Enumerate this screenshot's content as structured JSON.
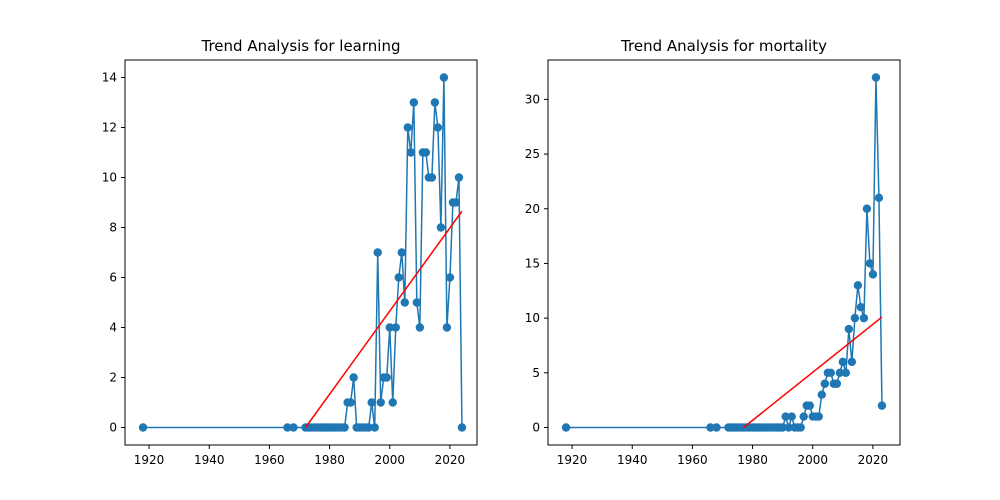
{
  "chart_data": [
    {
      "type": "line",
      "title": "Trend Analysis for learning",
      "xlabel": "",
      "ylabel": "",
      "xlim": [
        1912,
        2029
      ],
      "ylim": [
        -0.7,
        14.7
      ],
      "xticks": [
        1920,
        1940,
        1960,
        1980,
        2000,
        2020
      ],
      "yticks": [
        0,
        2,
        4,
        6,
        8,
        10,
        12,
        14
      ],
      "grid": false,
      "series": [
        {
          "color": "#1f77b4",
          "marker": "circle",
          "points": [
            [
              1918,
              0
            ],
            [
              1966,
              0
            ],
            [
              1968,
              0
            ],
            [
              1972,
              0
            ],
            [
              1973,
              0
            ],
            [
              1974,
              0
            ],
            [
              1975,
              0
            ],
            [
              1976,
              0
            ],
            [
              1977,
              0
            ],
            [
              1978,
              0
            ],
            [
              1979,
              0
            ],
            [
              1980,
              0
            ],
            [
              1981,
              0
            ],
            [
              1982,
              0
            ],
            [
              1983,
              0
            ],
            [
              1984,
              0
            ],
            [
              1985,
              0
            ],
            [
              1986,
              1
            ],
            [
              1987,
              1
            ],
            [
              1988,
              2
            ],
            [
              1989,
              0
            ],
            [
              1990,
              0
            ],
            [
              1991,
              0
            ],
            [
              1992,
              0
            ],
            [
              1993,
              0
            ],
            [
              1994,
              1
            ],
            [
              1995,
              0
            ],
            [
              1996,
              7
            ],
            [
              1997,
              1
            ],
            [
              1998,
              2
            ],
            [
              1999,
              2
            ],
            [
              2000,
              4
            ],
            [
              2001,
              1
            ],
            [
              2002,
              4
            ],
            [
              2003,
              6
            ],
            [
              2004,
              7
            ],
            [
              2005,
              5
            ],
            [
              2006,
              12
            ],
            [
              2007,
              11
            ],
            [
              2008,
              13
            ],
            [
              2009,
              5
            ],
            [
              2010,
              4
            ],
            [
              2011,
              11
            ],
            [
              2012,
              11
            ],
            [
              2013,
              10
            ],
            [
              2014,
              10
            ],
            [
              2015,
              13
            ],
            [
              2016,
              12
            ],
            [
              2017,
              8
            ],
            [
              2018,
              14
            ],
            [
              2019,
              4
            ],
            [
              2020,
              6
            ],
            [
              2021,
              9
            ],
            [
              2022,
              9
            ],
            [
              2023,
              10
            ],
            [
              2024,
              0
            ]
          ]
        },
        {
          "color": "#ff0000",
          "marker": "none",
          "points": [
            [
              1972,
              0
            ],
            [
              2024,
              8.65
            ]
          ]
        }
      ]
    },
    {
      "type": "line",
      "title": "Trend Analysis for mortality",
      "xlabel": "",
      "ylabel": "",
      "xlim": [
        1912,
        2029
      ],
      "ylim": [
        -1.6,
        33.6
      ],
      "xticks": [
        1920,
        1940,
        1960,
        1980,
        2000,
        2020
      ],
      "yticks": [
        0,
        5,
        10,
        15,
        20,
        25,
        30
      ],
      "grid": false,
      "series": [
        {
          "color": "#1f77b4",
          "marker": "circle",
          "points": [
            [
              1918,
              0
            ],
            [
              1966,
              0
            ],
            [
              1968,
              0
            ],
            [
              1972,
              0
            ],
            [
              1973,
              0
            ],
            [
              1974,
              0
            ],
            [
              1975,
              0
            ],
            [
              1976,
              0
            ],
            [
              1977,
              0
            ],
            [
              1978,
              0
            ],
            [
              1979,
              0
            ],
            [
              1980,
              0
            ],
            [
              1981,
              0
            ],
            [
              1982,
              0
            ],
            [
              1983,
              0
            ],
            [
              1984,
              0
            ],
            [
              1985,
              0
            ],
            [
              1986,
              0
            ],
            [
              1987,
              0
            ],
            [
              1988,
              0
            ],
            [
              1989,
              0
            ],
            [
              1990,
              0
            ],
            [
              1991,
              1
            ],
            [
              1992,
              0
            ],
            [
              1993,
              1
            ],
            [
              1994,
              0
            ],
            [
              1995,
              0
            ],
            [
              1996,
              0
            ],
            [
              1997,
              1
            ],
            [
              1998,
              2
            ],
            [
              1999,
              2
            ],
            [
              2000,
              1
            ],
            [
              2001,
              1
            ],
            [
              2002,
              1
            ],
            [
              2003,
              3
            ],
            [
              2004,
              4
            ],
            [
              2005,
              5
            ],
            [
              2006,
              5
            ],
            [
              2007,
              4
            ],
            [
              2008,
              4
            ],
            [
              2009,
              5
            ],
            [
              2010,
              6
            ],
            [
              2011,
              5
            ],
            [
              2012,
              9
            ],
            [
              2013,
              6
            ],
            [
              2014,
              10
            ],
            [
              2015,
              13
            ],
            [
              2016,
              11
            ],
            [
              2017,
              10
            ],
            [
              2018,
              20
            ],
            [
              2019,
              15
            ],
            [
              2020,
              14
            ],
            [
              2021,
              32
            ],
            [
              2022,
              21
            ],
            [
              2023,
              2
            ]
          ]
        },
        {
          "color": "#ff0000",
          "marker": "none",
          "points": [
            [
              1977,
              0
            ],
            [
              2023,
              10.1
            ]
          ]
        }
      ]
    }
  ]
}
